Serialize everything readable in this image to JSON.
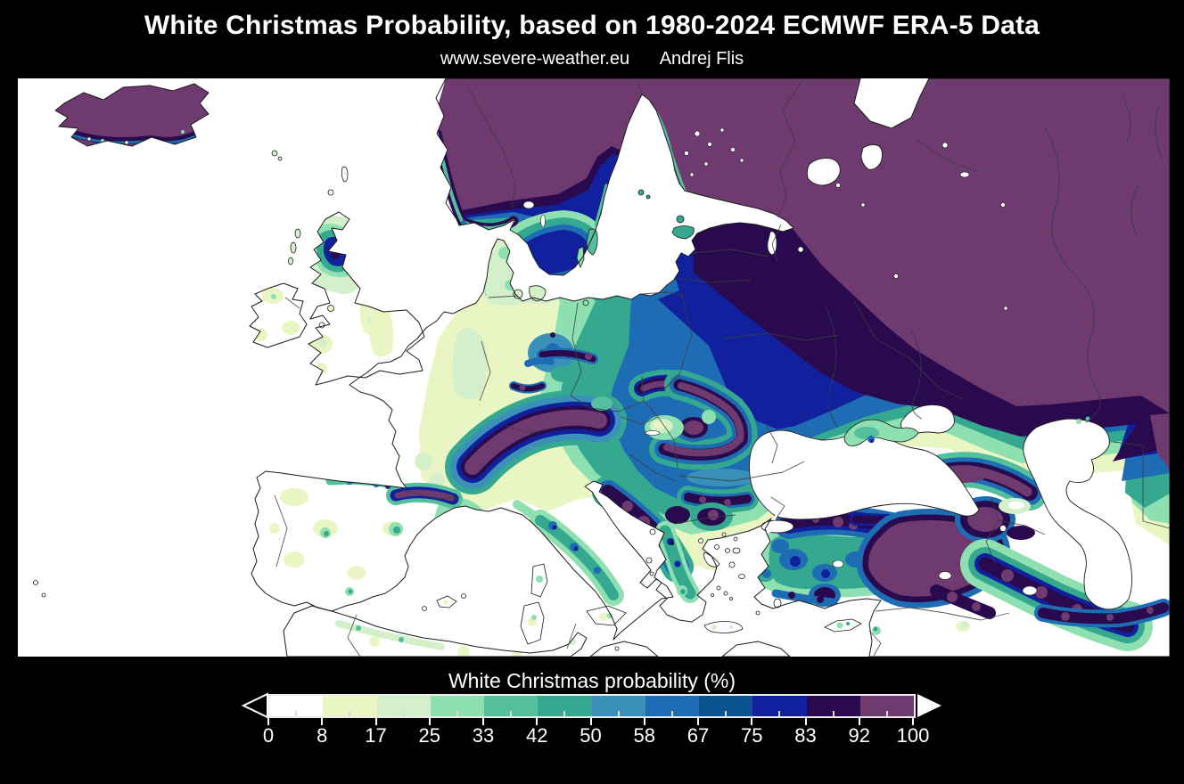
{
  "page": {
    "background_color": "#000000"
  },
  "header": {
    "title": "White Christmas Probability, based on 1980-2024 ECMWF ERA-5 Data",
    "website": "www.severe-weather.eu",
    "author": "Andrej Flis",
    "text_color": "#ffffff"
  },
  "map": {
    "sea_color": "#ffffff",
    "coastline_color": "#1c1c1c",
    "country_border_color": "#3c3c3c"
  },
  "colorbar": {
    "title": "White Christmas probability (%)",
    "unit": "%",
    "tick_labels": [
      "0",
      "8",
      "17",
      "25",
      "33",
      "42",
      "50",
      "58",
      "67",
      "75",
      "83",
      "92",
      "100"
    ],
    "segment_colors": [
      "#ffffff",
      "#e9f6c3",
      "#d3f0ca",
      "#8fe0b1",
      "#53bf9d",
      "#35a890",
      "#3b90ba",
      "#1e6cb3",
      "#0b5391",
      "#11219e",
      "#2a0a4e",
      "#6e3a6f"
    ],
    "underflow_arrow_color": "#000000",
    "overflow_arrow_color": "#ffffff",
    "frame_color": "#ececec",
    "tick_color": "#ffffff"
  },
  "chart_data": {
    "type": "heatmap",
    "title": "White Christmas probability (%)",
    "scale_ticks": [
      0,
      8,
      17,
      25,
      33,
      42,
      50,
      58,
      67,
      75,
      83,
      92,
      100
    ],
    "scale_colors": [
      "#ffffff",
      "#e9f6c3",
      "#d3f0ca",
      "#8fe0b1",
      "#53bf9d",
      "#35a890",
      "#3b90ba",
      "#1e6cb3",
      "#0b5391",
      "#11219e",
      "#2a0a4e",
      "#6e3a6f"
    ],
    "value_range": [
      0,
      100
    ],
    "legend_position": "bottom"
  }
}
